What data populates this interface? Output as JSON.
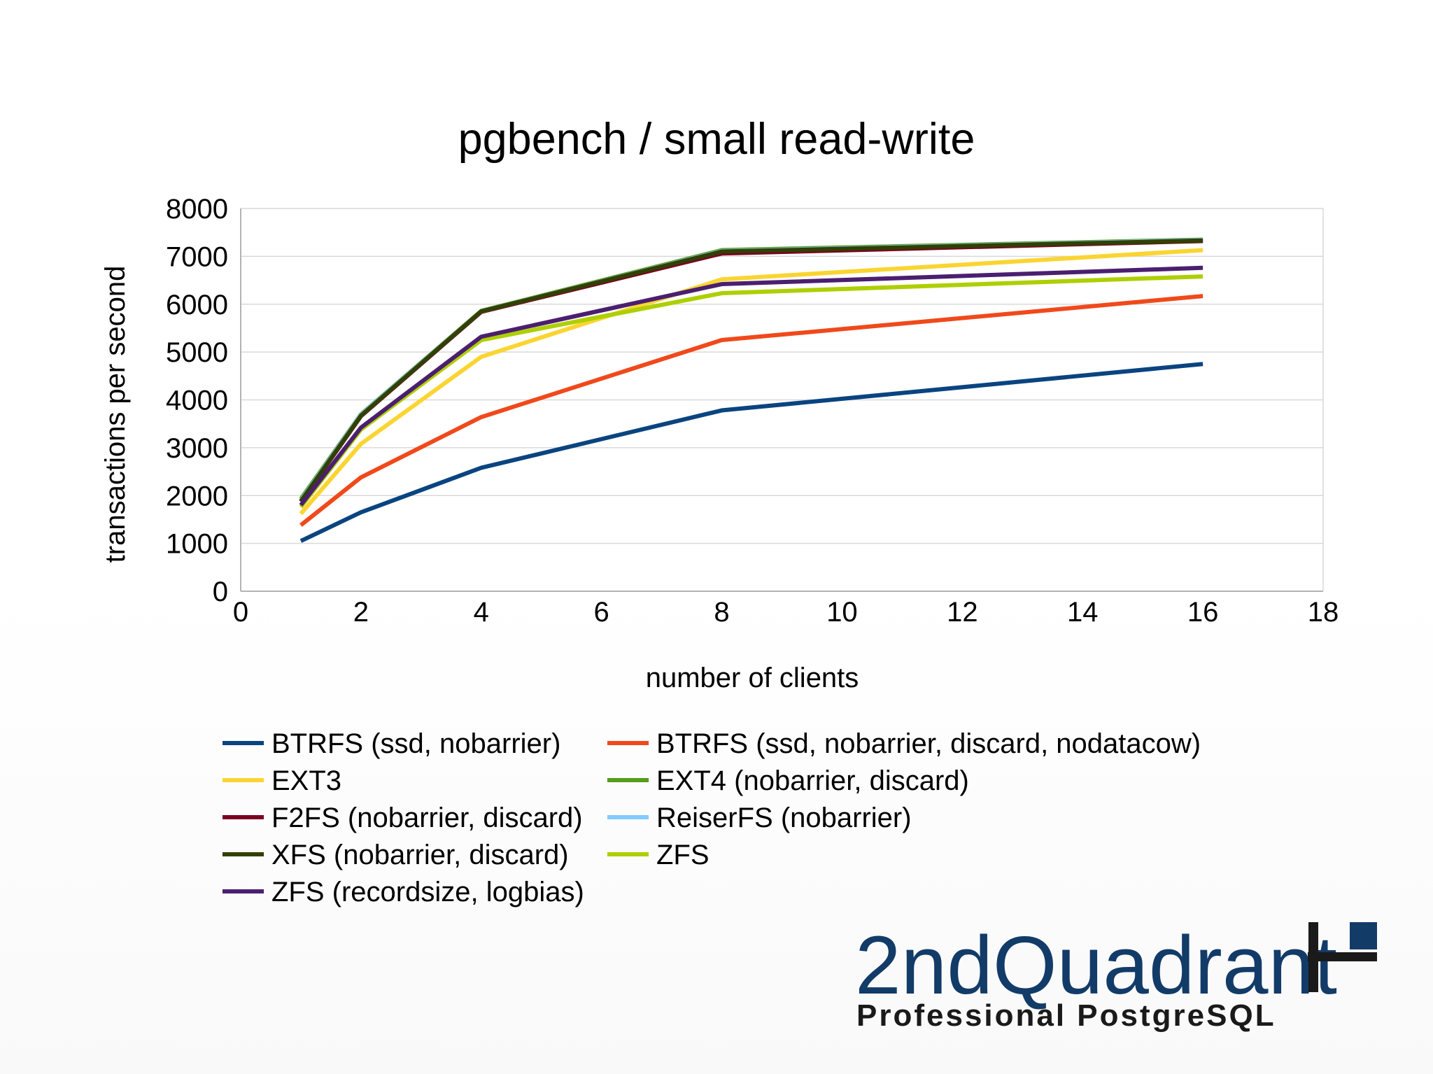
{
  "chart_data": {
    "type": "line",
    "title": "pgbench / small read-write",
    "xlabel": "number of clients",
    "ylabel": "transactions per second",
    "xlim": [
      0,
      18
    ],
    "ylim": [
      0,
      8000
    ],
    "xticks": [
      0,
      2,
      4,
      6,
      8,
      10,
      12,
      14,
      16,
      18
    ],
    "yticks": [
      0,
      1000,
      2000,
      3000,
      4000,
      5000,
      6000,
      7000,
      8000
    ],
    "grid": true,
    "legend_position": "bottom",
    "x": [
      1,
      2,
      4,
      8,
      16
    ],
    "series": [
      {
        "name": "BTRFS (ssd, nobarrier)",
        "color": "#0a4480",
        "values": [
          1050,
          1650,
          2580,
          3780,
          4750
        ]
      },
      {
        "name": "BTRFS (ssd, nobarrier, discard, nodatacow)",
        "color": "#f0491b",
        "values": [
          1380,
          2380,
          3640,
          5250,
          6170
        ]
      },
      {
        "name": "EXT3",
        "color": "#fad532",
        "values": [
          1620,
          3080,
          4900,
          6520,
          7130
        ]
      },
      {
        "name": "EXT4 (nobarrier, discard)",
        "color": "#579d1c",
        "values": [
          1930,
          3700,
          5860,
          7130,
          7350
        ]
      },
      {
        "name": "F2FS (nobarrier, discard)",
        "color": "#7e0021",
        "values": [
          1870,
          3660,
          5840,
          7060,
          7320
        ]
      },
      {
        "name": "ReiserFS (nobarrier)",
        "color": "#83caff",
        "values": [
          1900,
          3690,
          5850,
          7110,
          7340
        ]
      },
      {
        "name": "XFS (nobarrier, discard)",
        "color": "#314004",
        "values": [
          1880,
          3670,
          5850,
          7100,
          7330
        ]
      },
      {
        "name": "ZFS",
        "color": "#aecf00",
        "values": [
          1760,
          3380,
          5250,
          6230,
          6580
        ]
      },
      {
        "name": "ZFS (recordsize, logbias)",
        "color": "#4b1f6f",
        "values": [
          1800,
          3420,
          5320,
          6420,
          6760
        ]
      }
    ]
  },
  "logo": {
    "name": "2ndQuadrant",
    "tagline": "Professional PostgreSQL",
    "color": "#123b68"
  }
}
